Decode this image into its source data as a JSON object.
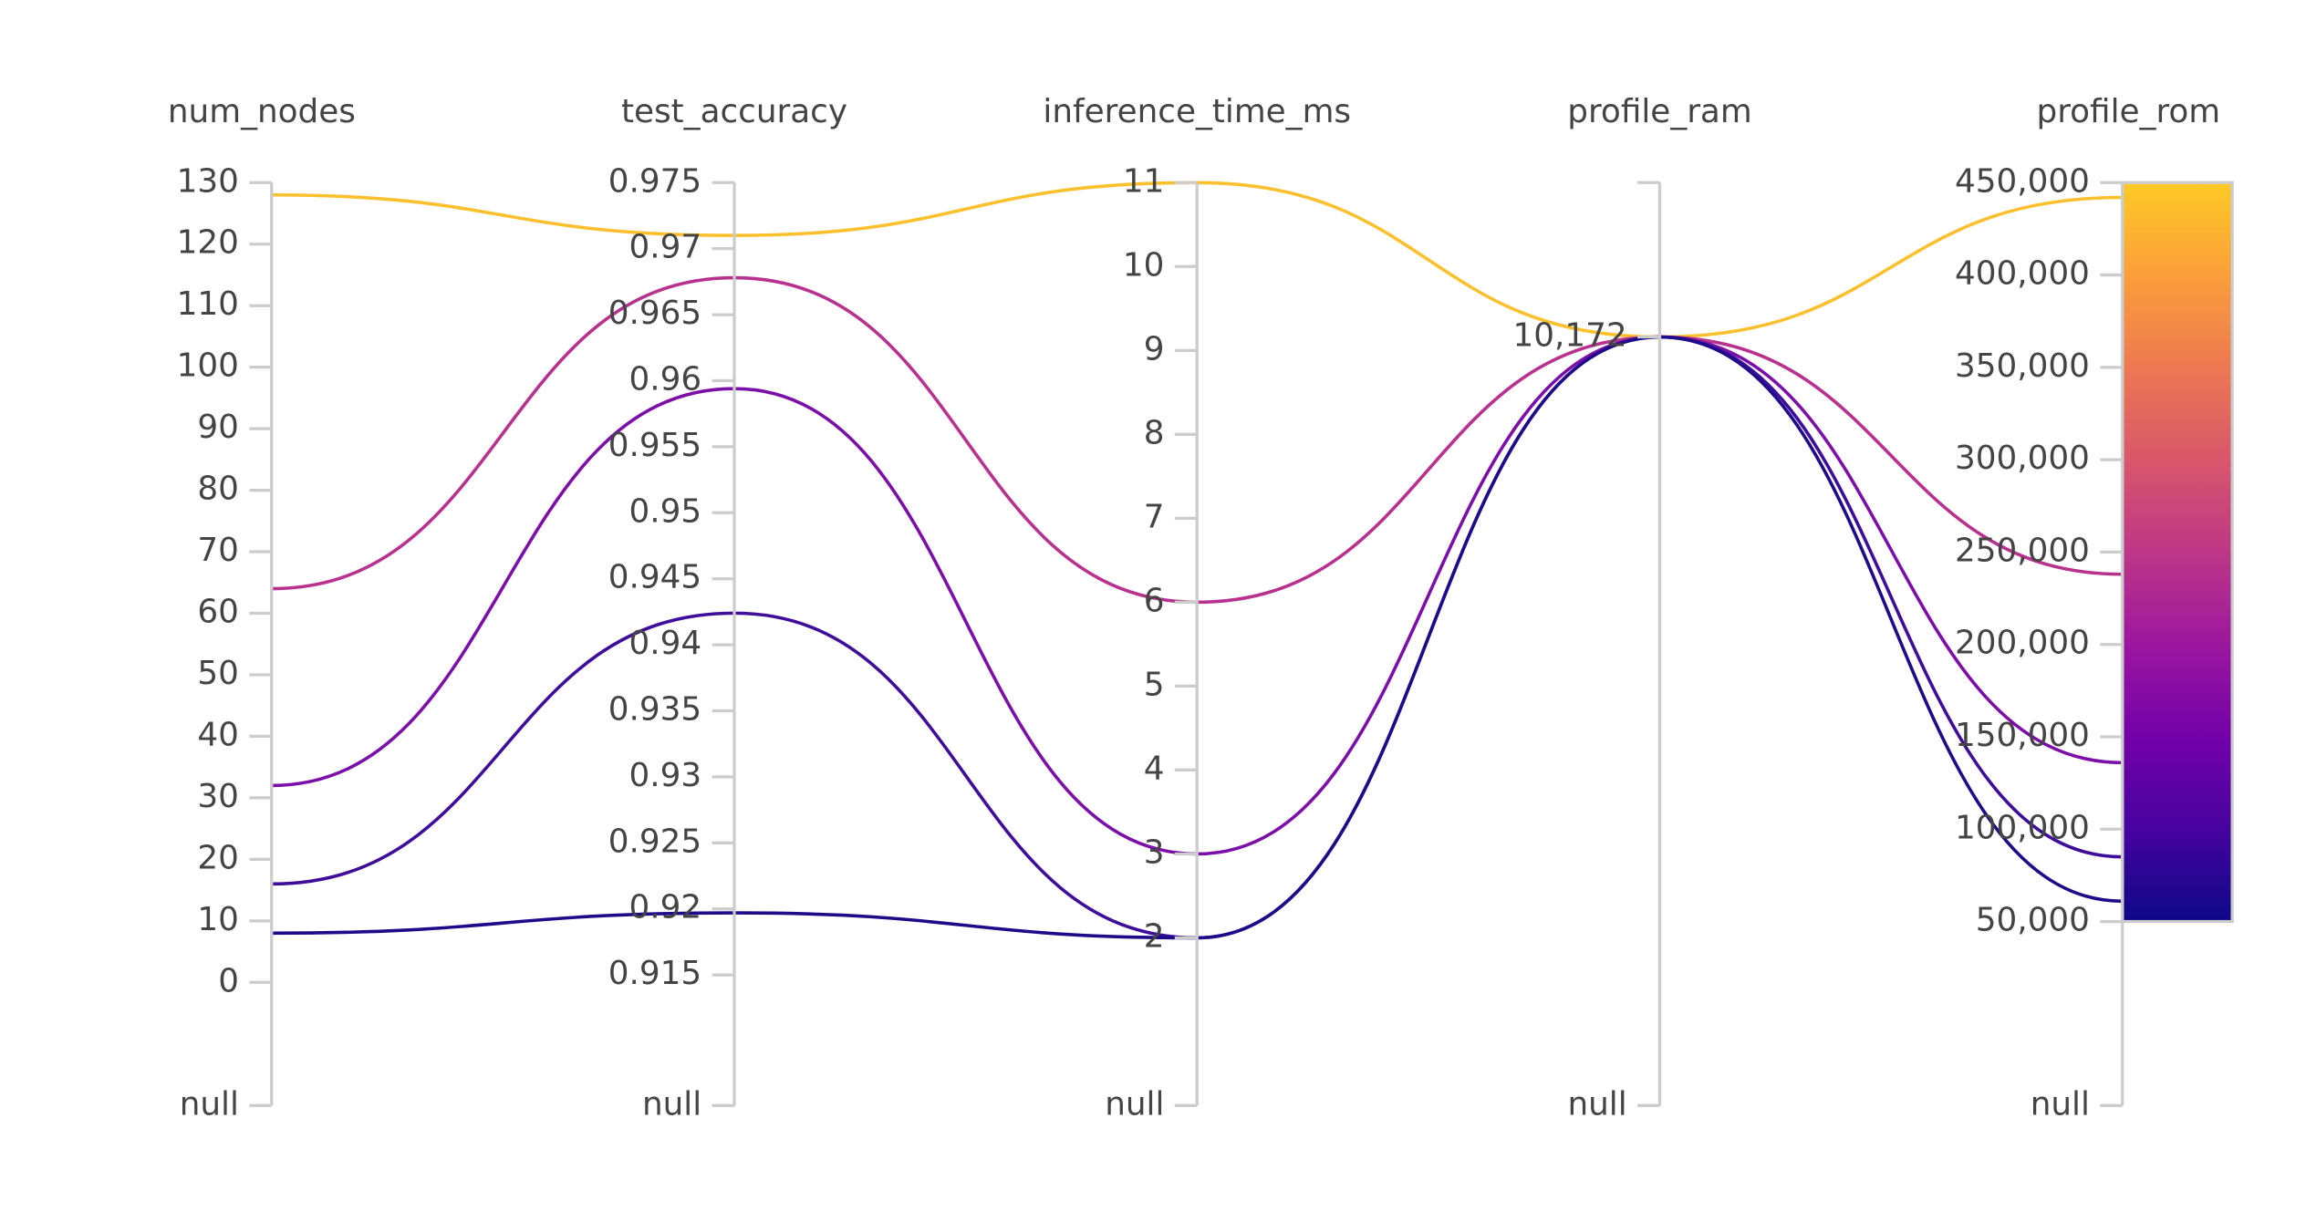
{
  "chart_data": {
    "type": "parcoords",
    "dimensions": [
      {
        "label": "num_nodes",
        "range": [
          0,
          130
        ],
        "ticks": [
          0,
          10,
          20,
          30,
          40,
          50,
          60,
          70,
          80,
          90,
          100,
          110,
          120,
          130
        ],
        "null_label": "null"
      },
      {
        "label": "test_accuracy",
        "range": [
          0.915,
          0.975
        ],
        "ticks": [
          0.915,
          0.92,
          0.925,
          0.93,
          0.935,
          0.94,
          0.945,
          0.95,
          0.955,
          0.96,
          0.965,
          0.97,
          0.975
        ],
        "null_label": "null"
      },
      {
        "label": "inference_time_ms",
        "range": [
          2,
          11
        ],
        "ticks": [
          2,
          3,
          4,
          5,
          6,
          7,
          8,
          9,
          10,
          11
        ],
        "null_label": "null"
      },
      {
        "label": "profile_ram",
        "range": [
          10172,
          10172
        ],
        "ticks": [
          {
            "value": 10172,
            "label": "10,172"
          }
        ],
        "null_label": "null"
      },
      {
        "label": "profile_rom",
        "range": [
          50000,
          450000
        ],
        "ticks": [
          {
            "value": 50000,
            "label": "50,000"
          },
          {
            "value": 100000,
            "label": "100,000"
          },
          {
            "value": 150000,
            "label": "150,000"
          },
          {
            "value": 200000,
            "label": "200,000"
          },
          {
            "value": 250000,
            "label": "250,000"
          },
          {
            "value": 300000,
            "label": "300,000"
          },
          {
            "value": 350000,
            "label": "350,000"
          },
          {
            "value": 400000,
            "label": "400,000"
          },
          {
            "value": 450000,
            "label": "450,000"
          }
        ],
        "null_label": "null"
      }
    ],
    "series": [
      {
        "color": "#fbc02d",
        "values": [
          128,
          0.971,
          11,
          10172,
          442000
        ]
      },
      {
        "color": "#b8318f",
        "values": [
          64,
          0.9678,
          6,
          10172,
          238000
        ]
      },
      {
        "color": "#7b0fa8",
        "values": [
          32,
          0.9594,
          3,
          10172,
          136000
        ]
      },
      {
        "color": "#3e0e9a",
        "values": [
          16,
          0.9424,
          2,
          10172,
          85000
        ]
      },
      {
        "color": "#1f0a8a",
        "values": [
          8,
          0.9197,
          2,
          10172,
          61000
        ]
      }
    ],
    "colorscale": [
      "#0d0887",
      "#46039f",
      "#7201a8",
      "#9c179e",
      "#bd3786",
      "#d8576b",
      "#ed7953",
      "#fb9f3a",
      "#fdca26"
    ]
  }
}
